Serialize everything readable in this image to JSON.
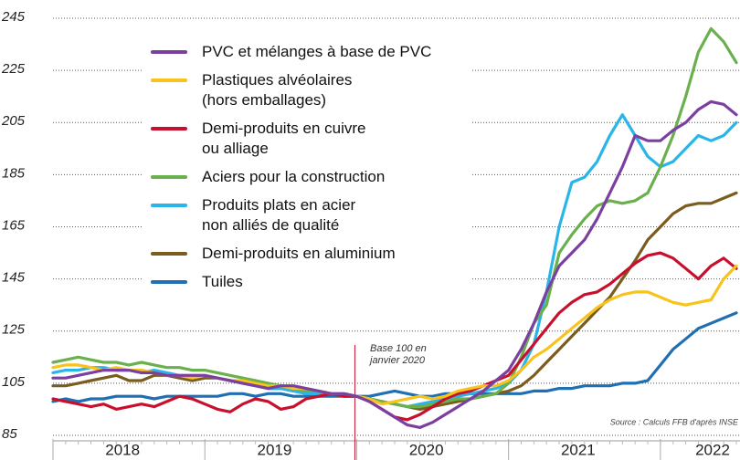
{
  "chart_data": {
    "type": "line",
    "annotation": "Base 100 en\njanvier 2020",
    "source": "Source : Calculs FFB d'après INSE",
    "categories": [
      "2018",
      null,
      null,
      null,
      null,
      null,
      null,
      null,
      null,
      null,
      null,
      null,
      "2019",
      null,
      null,
      null,
      null,
      null,
      null,
      null,
      null,
      null,
      null,
      null,
      "2020",
      null,
      null,
      null,
      null,
      null,
      null,
      null,
      null,
      null,
      null,
      null,
      "2021",
      null,
      null,
      null,
      null,
      null,
      null,
      null,
      null,
      null,
      null,
      null,
      "2022",
      null,
      null,
      null,
      null,
      null,
      null
    ],
    "ylim": [
      85,
      245
    ],
    "yticks": [
      85,
      105,
      125,
      145,
      165,
      185,
      205,
      225,
      245
    ],
    "grid": true,
    "legend": "upper left",
    "series": [
      {
        "name": "PVC et mélanges à base de PVC",
        "color": "#7b3fa0",
        "values": [
          107,
          107,
          108,
          109,
          110,
          110,
          110,
          109,
          109,
          108,
          108,
          108,
          108,
          107,
          106,
          105,
          104,
          103,
          104,
          104,
          103,
          102,
          101,
          101,
          100,
          98,
          95,
          92,
          89,
          88,
          90,
          93,
          96,
          99,
          102,
          106,
          110,
          118,
          128,
          140,
          150,
          155,
          160,
          168,
          178,
          188,
          200,
          198,
          198,
          202,
          205,
          210,
          213,
          212,
          208
        ]
      },
      {
        "name": "Plastiques alvéolaires\n(hors emballages)",
        "color": "#f7c31c",
        "values": [
          111,
          112,
          112,
          111,
          110,
          111,
          110,
          110,
          109,
          108,
          108,
          107,
          108,
          107,
          106,
          106,
          105,
          104,
          104,
          103,
          103,
          102,
          101,
          101,
          100,
          99,
          97,
          98,
          99,
          100,
          99,
          100,
          102,
          103,
          104,
          104,
          106,
          110,
          115,
          118,
          122,
          126,
          130,
          134,
          137,
          139,
          140,
          140,
          138,
          136,
          135,
          136,
          137,
          145,
          150
        ]
      },
      {
        "name": "Demi-produits en cuivre\nou alliage",
        "color": "#c8102e",
        "values": [
          99,
          98,
          97,
          96,
          97,
          95,
          96,
          97,
          96,
          98,
          100,
          99,
          97,
          95,
          94,
          97,
          99,
          98,
          95,
          96,
          99,
          100,
          101,
          100,
          100,
          98,
          95,
          92,
          91,
          93,
          96,
          99,
          101,
          102,
          104,
          106,
          108,
          114,
          120,
          126,
          132,
          136,
          139,
          140,
          143,
          147,
          151,
          154,
          155,
          153,
          149,
          145,
          150,
          153,
          149
        ]
      },
      {
        "name": "Aciers pour la construction",
        "color": "#6ab04c",
        "values": [
          113,
          114,
          115,
          114,
          113,
          113,
          112,
          113,
          112,
          111,
          111,
          110,
          110,
          109,
          108,
          107,
          106,
          105,
          104,
          103,
          102,
          102,
          101,
          101,
          100,
          99,
          98,
          97,
          96,
          96,
          97,
          98,
          99,
          99,
          100,
          101,
          105,
          115,
          128,
          135,
          155,
          162,
          168,
          173,
          175,
          174,
          175,
          178,
          188,
          200,
          215,
          232,
          241,
          236,
          228
        ]
      },
      {
        "name": "Produits plats en acier\nnon alliés de qualité",
        "color": "#29b5e8",
        "values": [
          109,
          110,
          110,
          111,
          111,
          110,
          110,
          109,
          110,
          109,
          108,
          108,
          108,
          107,
          106,
          105,
          104,
          103,
          103,
          102,
          101,
          101,
          101,
          100,
          100,
          99,
          98,
          97,
          96,
          97,
          98,
          99,
          100,
          101,
          102,
          103,
          105,
          110,
          120,
          140,
          165,
          182,
          184,
          190,
          200,
          208,
          200,
          192,
          188,
          190,
          195,
          200,
          198,
          200,
          205
        ]
      },
      {
        "name": "Demi-produits en aluminium",
        "color": "#7a5c1e",
        "values": [
          104,
          104,
          105,
          106,
          107,
          108,
          106,
          106,
          108,
          108,
          107,
          106,
          107,
          107,
          106,
          105,
          104,
          103,
          103,
          102,
          102,
          101,
          101,
          100,
          100,
          99,
          98,
          97,
          96,
          95,
          96,
          97,
          98,
          99,
          100,
          101,
          102,
          104,
          108,
          113,
          118,
          123,
          128,
          133,
          138,
          145,
          152,
          160,
          165,
          170,
          173,
          174,
          174,
          176,
          178
        ]
      },
      {
        "name": "Tuiles",
        "color": "#1f6fb2",
        "values": [
          98,
          99,
          98,
          99,
          99,
          100,
          100,
          100,
          99,
          100,
          100,
          100,
          100,
          100,
          101,
          101,
          100,
          101,
          101,
          100,
          100,
          100,
          100,
          100,
          100,
          100,
          101,
          102,
          101,
          100,
          100,
          101,
          101,
          101,
          101,
          101,
          101,
          101,
          102,
          102,
          103,
          103,
          104,
          104,
          104,
          105,
          105,
          106,
          112,
          118,
          122,
          126,
          128,
          130,
          132
        ]
      }
    ]
  }
}
